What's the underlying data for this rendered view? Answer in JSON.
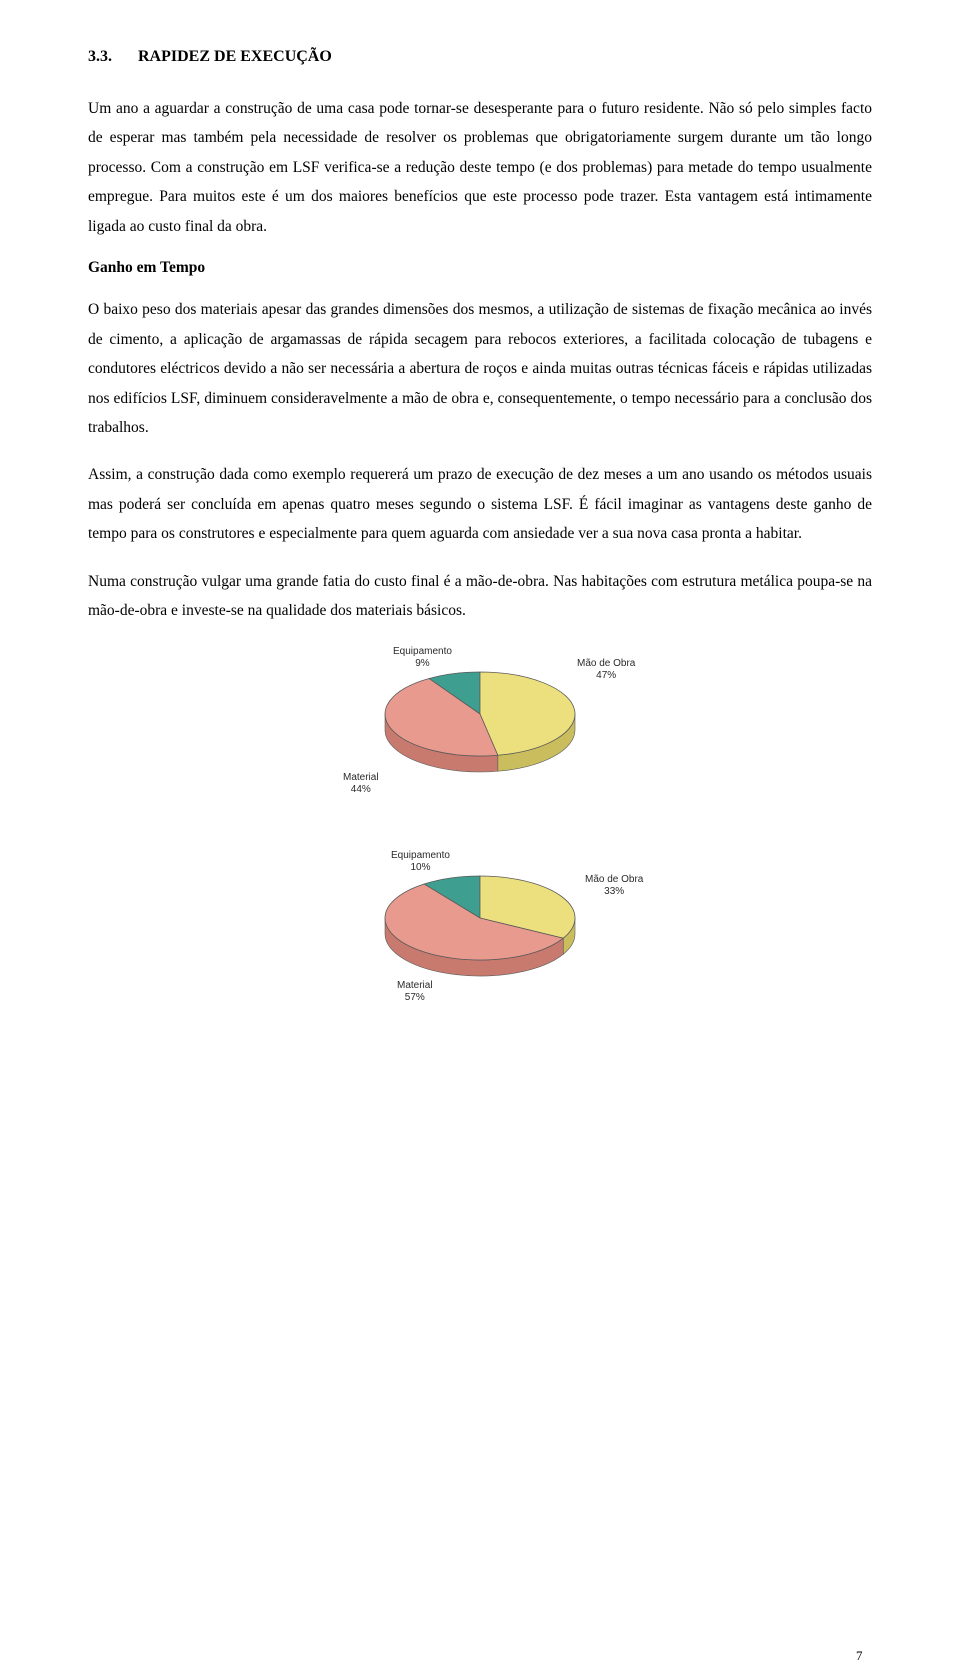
{
  "heading": {
    "number": "3.3.",
    "title": "RAPIDEZ DE EXECUÇÃO"
  },
  "paragraphs": {
    "p1": "Um ano a aguardar a construção de uma casa pode tornar-se desesperante para o futuro residente. Não só pelo simples facto de esperar mas também pela necessidade de resolver os problemas que obrigatoriamente surgem durante um tão longo processo. Com a construção em LSF verifica-se a redução deste tempo (e dos problemas) para metade do tempo usualmente empregue. Para muitos este é um dos maiores benefícios que este processo pode trazer. Esta vantagem está intimamente ligada ao custo final da obra.",
    "sub1": "Ganho em Tempo",
    "p2": "O baixo peso dos materiais apesar das grandes dimensões dos mesmos, a utilização de sistemas de fixação mecânica ao invés de cimento, a aplicação de argamassas de rápida secagem para rebocos exteriores, a facilitada colocação de tubagens e condutores eléctricos devido a não ser necessária a abertura de roços e ainda muitas outras técnicas fáceis e rápidas utilizadas nos edifícios LSF, diminuem consideravelmente a mão de obra e, consequentemente, o tempo necessário para a conclusão dos trabalhos.",
    "p3": "Assim, a construção dada como exemplo requererá um prazo de execução de dez meses a um ano usando os métodos usuais mas poderá ser concluída em apenas quatro meses segundo o sistema LSF. É fácil imaginar as vantagens deste ganho de tempo para os construtores e especialmente para quem aguarda com ansiedade ver a sua nova casa pronta a habitar.",
    "p4": "Numa construção vulgar uma grande fatia do custo final é a mão-de-obra. Nas habitações com estrutura metálica poupa-se na mão-de-obra e investe-se na qualidade dos materiais básicos."
  },
  "chart1": {
    "type": "pie",
    "slices": [
      {
        "key": "mao_de_obra",
        "label": "Mão de Obra",
        "percent_label": "47%",
        "value": 47,
        "fill": "#ece07e",
        "fill_side": "#c9bd5e"
      },
      {
        "key": "material",
        "label": "Material",
        "percent_label": "44%",
        "value": 44,
        "fill": "#e89a8e",
        "fill_side": "#c97a6f"
      },
      {
        "key": "equipamento",
        "label": "Equipamento",
        "percent_label": "9%",
        "value": 9,
        "fill": "#3e9f91",
        "fill_side": "#2e7e72"
      }
    ],
    "stroke": "#5a5a5a",
    "label_color": "#2a2a2a",
    "label_font_size": 10
  },
  "chart2": {
    "type": "pie",
    "slices": [
      {
        "key": "mao_de_obra",
        "label": "Mão de Obra",
        "percent_label": "33%",
        "value": 33,
        "fill": "#ece07e",
        "fill_side": "#c9bd5e"
      },
      {
        "key": "material",
        "label": "Material",
        "percent_label": "57%",
        "value": 57,
        "fill": "#e89a8e",
        "fill_side": "#c97a6f"
      },
      {
        "key": "equipamento",
        "label": "Equipamento",
        "percent_label": "10%",
        "value": 10,
        "fill": "#3e9f91",
        "fill_side": "#2e7e72"
      }
    ],
    "stroke": "#5a5a5a",
    "label_color": "#2a2a2a",
    "label_font_size": 10
  },
  "page_number": "7"
}
